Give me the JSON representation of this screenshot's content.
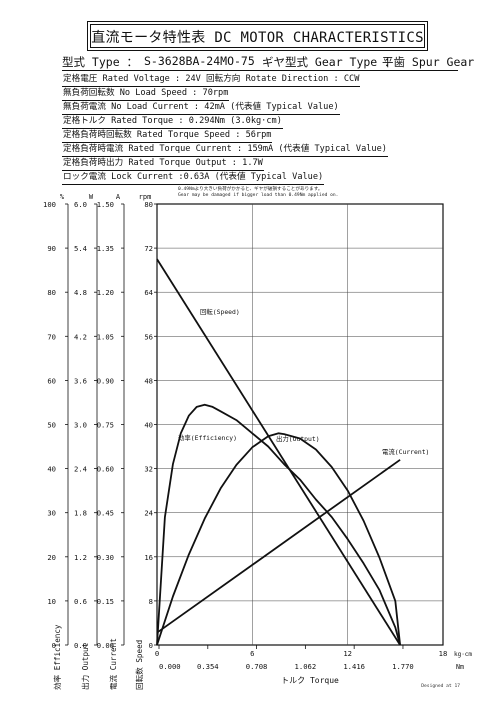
{
  "header": {
    "title": "直流モータ特性表 DC MOTOR CHARACTERISTICS",
    "model_label": "型式 Type ：",
    "model_value": "S-3628BA-24MO-75",
    "gear_label": "ギヤ型式 Gear Type ：",
    "gear_value": "平歯  Spur Gear"
  },
  "specs": [
    "定格電圧 Rated Voltage : 24V   回転方向 Rotate Direction : CCW",
    "無負荷回転数 No Load Speed : 70rpm",
    "無負荷電流 No Load Current : 42mA (代表値 Typical Value)",
    "定格トルク Rated Torque : 0.294Nm (3.0kg·cm)",
    "定格負荷時回転数 Rated Torque Speed : 56rpm",
    "定格負荷時電流 Rated Torque Current : 159mA (代表値 Typical Value)",
    "定格負荷時出力 Rated Torque Output : 1.7W",
    "ロック電流 Lock Current :0.63A (代表値 Typical Value)"
  ],
  "warning": [
    "0.49Nmより大きい負荷がかかると、ギヤが破損することがあります。",
    "Gear may be damaged if bigger load than 0.49Nm applied on."
  ],
  "footer": "Designed at 17",
  "chart_data": {
    "type": "line",
    "title": "直流モータ特性表 DC MOTOR CHARACTERISTICS",
    "xlabel": "トルク Torque",
    "x_units": [
      "kg·cm",
      "Nm"
    ],
    "xlim": [
      0,
      18
    ],
    "x_ticks_kgcm": [
      "0",
      "6",
      "12",
      "18"
    ],
    "x_ticks_nm": [
      "0.000",
      "0.354",
      "0.708",
      "1.062",
      "1.416",
      "1.770"
    ],
    "grid": true,
    "axes": [
      {
        "name": "回転数 Speed",
        "unit": "rpm",
        "range": [
          0,
          80
        ],
        "ticks": [
          "0",
          "8",
          "16",
          "24",
          "32",
          "40",
          "48",
          "56",
          "64",
          "72",
          "80"
        ]
      },
      {
        "name": "電流 Current",
        "unit": "A",
        "range": [
          0,
          1.5
        ],
        "ticks": [
          "0.00",
          "0.15",
          "0.30",
          "0.45",
          "0.60",
          "0.75",
          "0.90",
          "1.05",
          "1.20",
          "1.35",
          "1.50"
        ]
      },
      {
        "name": "出力 Output",
        "unit": "W",
        "range": [
          0,
          6
        ],
        "ticks": [
          "0.0",
          "0.6",
          "1.2",
          "1.8",
          "2.4",
          "3.0",
          "3.6",
          "4.2",
          "4.8",
          "5.4",
          "6.0"
        ]
      },
      {
        "name": "効率 Efficiency",
        "unit": "%",
        "range": [
          0,
          100
        ],
        "ticks": [
          "0",
          "10",
          "20",
          "30",
          "40",
          "50",
          "60",
          "70",
          "80",
          "90",
          "100"
        ]
      }
    ],
    "series": [
      {
        "name": "回転(Speed)",
        "axis": "rpm",
        "color": "#111111",
        "x": [
          0,
          15.3
        ],
        "y": [
          70,
          0
        ]
      },
      {
        "name": "電流(Current)",
        "axis": "A",
        "color": "#111111",
        "x": [
          0,
          15.3
        ],
        "y": [
          0.042,
          0.63
        ]
      },
      {
        "name": "出力(Output)",
        "axis": "W",
        "color": "#111111",
        "x": [
          0,
          1,
          2,
          3,
          4,
          5,
          6,
          7,
          7.65,
          8,
          9,
          10,
          11,
          12,
          13,
          14,
          15,
          15.3
        ],
        "y": [
          0,
          0.66,
          1.23,
          1.72,
          2.13,
          2.45,
          2.69,
          2.84,
          2.88,
          2.87,
          2.81,
          2.66,
          2.42,
          2.1,
          1.69,
          1.19,
          0.6,
          0
        ]
      },
      {
        "name": "効率(Efficiency)",
        "axis": "%",
        "color": "#111111",
        "x": [
          0,
          0.5,
          1,
          1.5,
          2,
          2.5,
          3,
          3.5,
          4,
          5,
          6,
          7,
          8,
          9,
          10,
          11,
          12,
          13,
          14,
          15,
          15.3
        ],
        "y": [
          0,
          29,
          41,
          48,
          52,
          54,
          54.5,
          54,
          53,
          51,
          48,
          45,
          41,
          37.5,
          33,
          29,
          24,
          18.5,
          12.5,
          4,
          0
        ]
      }
    ],
    "series_labels": [
      "回転(Speed)",
      "電流(Current)",
      "出力(Output)",
      "効率(Efficiency)"
    ]
  }
}
